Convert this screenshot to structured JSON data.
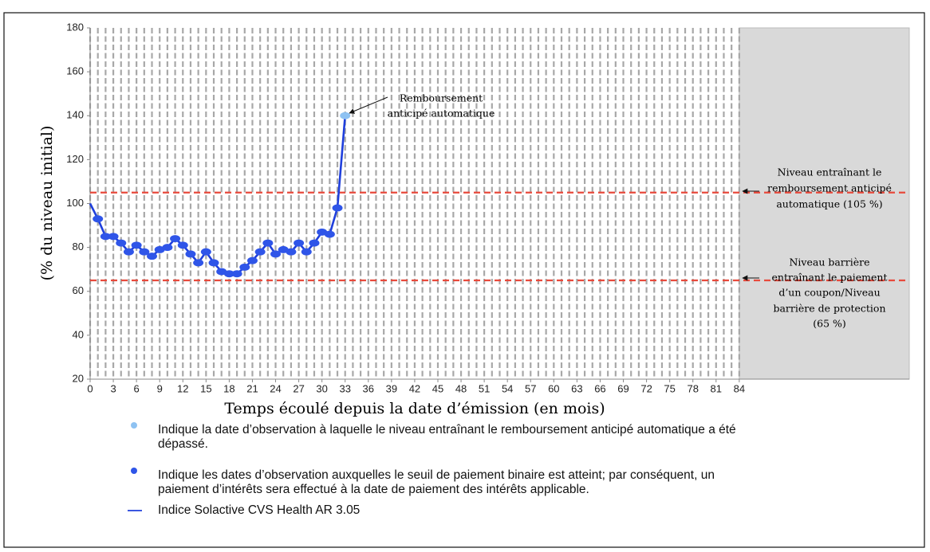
{
  "chart_data": {
    "type": "line",
    "ylabel": "(% du niveau initial)",
    "xlabel": "Temps écoulé depuis la date d’émission (en mois)",
    "x": [
      0,
      1,
      2,
      3,
      4,
      5,
      6,
      7,
      8,
      9,
      10,
      11,
      12,
      13,
      14,
      15,
      16,
      17,
      18,
      19,
      20,
      21,
      22,
      23,
      24,
      25,
      26,
      27,
      28,
      29,
      30,
      31,
      32,
      33
    ],
    "series": [
      {
        "name": "Indice Solactive CVS Health AR 3.05",
        "color": "#1f3fdc",
        "values": [
          100,
          93,
          85,
          85,
          82,
          78,
          81,
          78,
          76,
          79,
          80,
          84,
          81,
          77,
          73,
          78,
          73,
          69,
          68,
          68,
          71,
          74,
          78,
          82,
          77,
          79,
          78,
          82,
          78,
          82,
          87,
          86,
          98,
          140
        ]
      }
    ],
    "marker_color": "#2f55e8",
    "highlight_color": "#8ec2f2",
    "highlight_x": 33,
    "xlim": [
      0,
      106
    ],
    "ylim": [
      20,
      180
    ],
    "xticks": [
      0,
      3,
      6,
      9,
      12,
      15,
      18,
      21,
      24,
      27,
      30,
      33,
      36,
      39,
      42,
      45,
      48,
      51,
      54,
      57,
      60,
      63,
      66,
      69,
      72,
      75,
      78,
      81,
      84
    ],
    "yticks": [
      20,
      40,
      60,
      80,
      100,
      120,
      140,
      160,
      180
    ],
    "x_grid_step": 1,
    "shade_from": 84,
    "hlines": [
      {
        "value": 105,
        "color": "#e84a3c",
        "label": [
          "Niveau entraînant le",
          "remboursement anticipé",
          "automatique (105 %)"
        ]
      },
      {
        "value": 65,
        "color": "#e84a3c",
        "label": [
          "Niveau barrière",
          "entraînant le paiement",
          "d’un coupon/Niveau",
          "barrière de protection",
          "(65 %)"
        ]
      }
    ],
    "annotation": [
      "Remboursement",
      "anticipé automatique"
    ],
    "legend": [
      [
        "Indique la date d’observation à laquelle le niveau entraînant le remboursement anticipé automatique a été",
        "dépassé."
      ],
      [
        "Indique les dates d’observation auxquelles le seuil de paiement binaire est atteint; par conséquent, un",
        "paiement d’intérêts sera effectué à la date de paiement des intérêts applicable."
      ],
      [
        "Indice Solactive CVS Health AR 3.05"
      ]
    ]
  }
}
